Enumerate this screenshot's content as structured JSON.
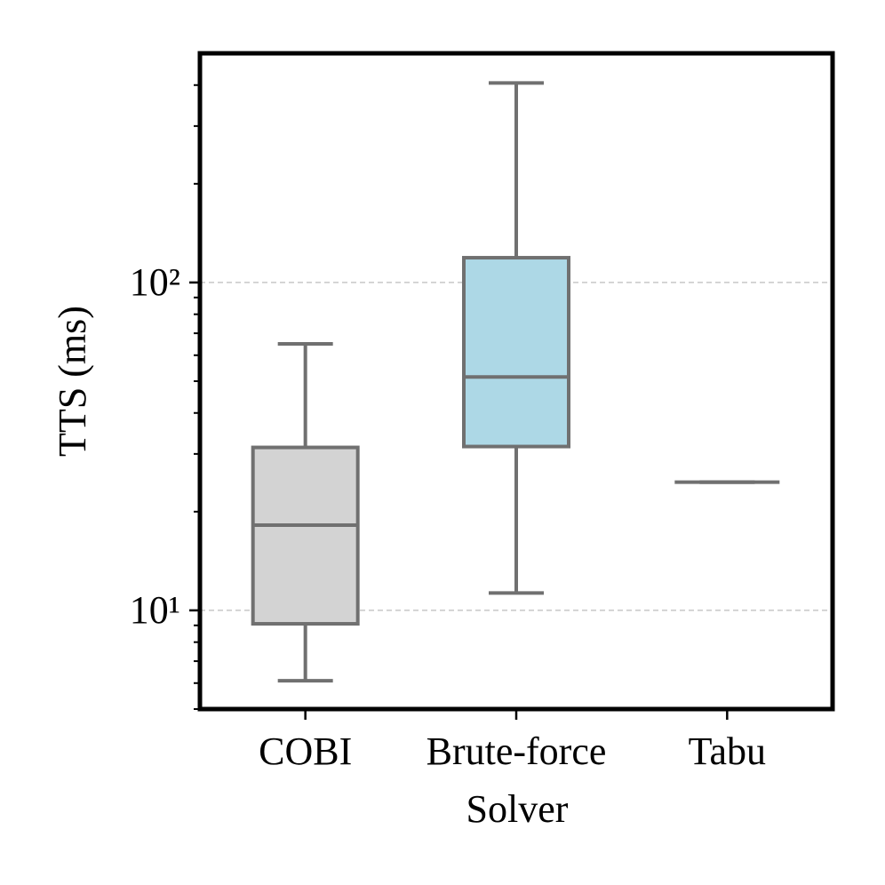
{
  "chart_data": {
    "type": "box",
    "x_label": "Solver",
    "y_label": "TTS (ms)",
    "categories": [
      "COBI",
      "Brute-force",
      "Tabu"
    ],
    "boxes": [
      {
        "whislo": 6.1,
        "q1": 9.1,
        "med": 18.2,
        "q3": 31.4,
        "whishi": 65
      },
      {
        "whislo": 11.3,
        "q1": 31.6,
        "med": 51.5,
        "q3": 119,
        "whishi": 406
      },
      {
        "whislo": 24.6,
        "q1": 24.6,
        "med": 24.6,
        "q3": 24.6,
        "whishi": 24.6
      }
    ],
    "colors": [
      "#d3d3d3",
      "#add8e6",
      "#d3d3d3"
    ],
    "edge_color": "#707070",
    "ylim": [
      5,
      500
    ],
    "yscale": "log",
    "yticks": [
      {
        "value": 10,
        "label": "10¹"
      },
      {
        "value": 100,
        "label": "10²"
      }
    ],
    "yminor": [
      5,
      6,
      7,
      8,
      9,
      20,
      30,
      40,
      50,
      60,
      70,
      80,
      90,
      200,
      300,
      400
    ],
    "grid": true
  }
}
